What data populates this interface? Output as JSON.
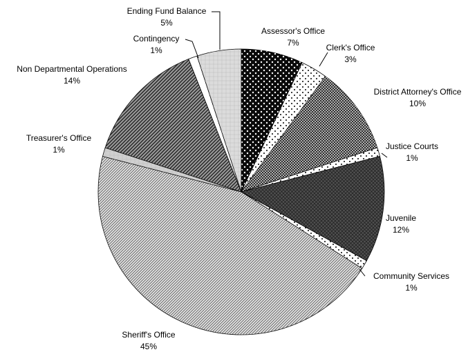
{
  "chart_data": {
    "type": "pie",
    "categories": [
      "Assessor's Office",
      "Clerk's Office",
      "District Attorney's Office",
      "Justice Courts",
      "Juvenile",
      "Community Services",
      "Sheriff's Office",
      "Treasurer's Office",
      "Non Departmental Operations",
      "Contingency",
      "Ending Fund Balance"
    ],
    "values": [
      7,
      3,
      10,
      1,
      12,
      1,
      45,
      1,
      14,
      1,
      5
    ],
    "value_labels": [
      "7%",
      "3%",
      "10%",
      "1%",
      "12%",
      "1%",
      "45%",
      "1%",
      "14%",
      "1%",
      "5%"
    ],
    "colors": [
      "#0a0a0a",
      "#ffffff",
      "#1e1e1e",
      "#ffffff",
      "#505050",
      "#ffffff",
      "#e2e2e2",
      "#d0d0d0",
      "#9a9a9a",
      "#ffffff",
      "#dcdcdc"
    ]
  }
}
